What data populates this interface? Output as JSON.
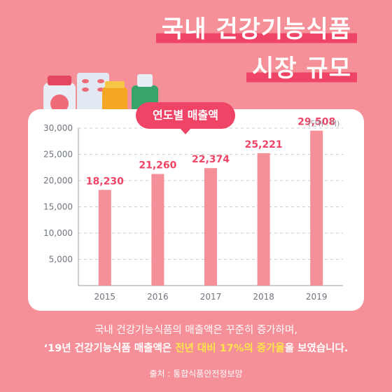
{
  "title": {
    "line1": "국내 건강기능식품",
    "line2": "시장 규모"
  },
  "badge": "연도별 매출액",
  "unit_label": "(단위 : 억)",
  "caption": {
    "line1": "국내 건강기능식품의 매출액은 꾸준히 증가하며,",
    "line2_start": "‘19년 건강기능식품 매출액은 ",
    "line2_highlight": "전년 대비 17%의 증가율",
    "line2_end": "을 보였습니다."
  },
  "source": "출처 : 통합식품안전정보망",
  "colors": {
    "background": "#f58f98",
    "accent": "#ef4466",
    "bar": "#f58f98",
    "highlight": "#ffe54a"
  },
  "chart_data": {
    "type": "bar",
    "categories": [
      "2015",
      "2016",
      "2017",
      "2018",
      "2019"
    ],
    "values": [
      18230,
      21260,
      22374,
      25221,
      29508
    ],
    "value_labels": [
      "18,230",
      "21,260",
      "22,374",
      "25,221",
      "29,508"
    ],
    "yticks": [
      5000,
      10000,
      15000,
      20000,
      25000,
      30000
    ],
    "ytick_labels": [
      "5,000",
      "10,000",
      "15,000",
      "20,000",
      "25,000",
      "30,000"
    ],
    "ylim": [
      0,
      30000
    ],
    "grid": true
  }
}
